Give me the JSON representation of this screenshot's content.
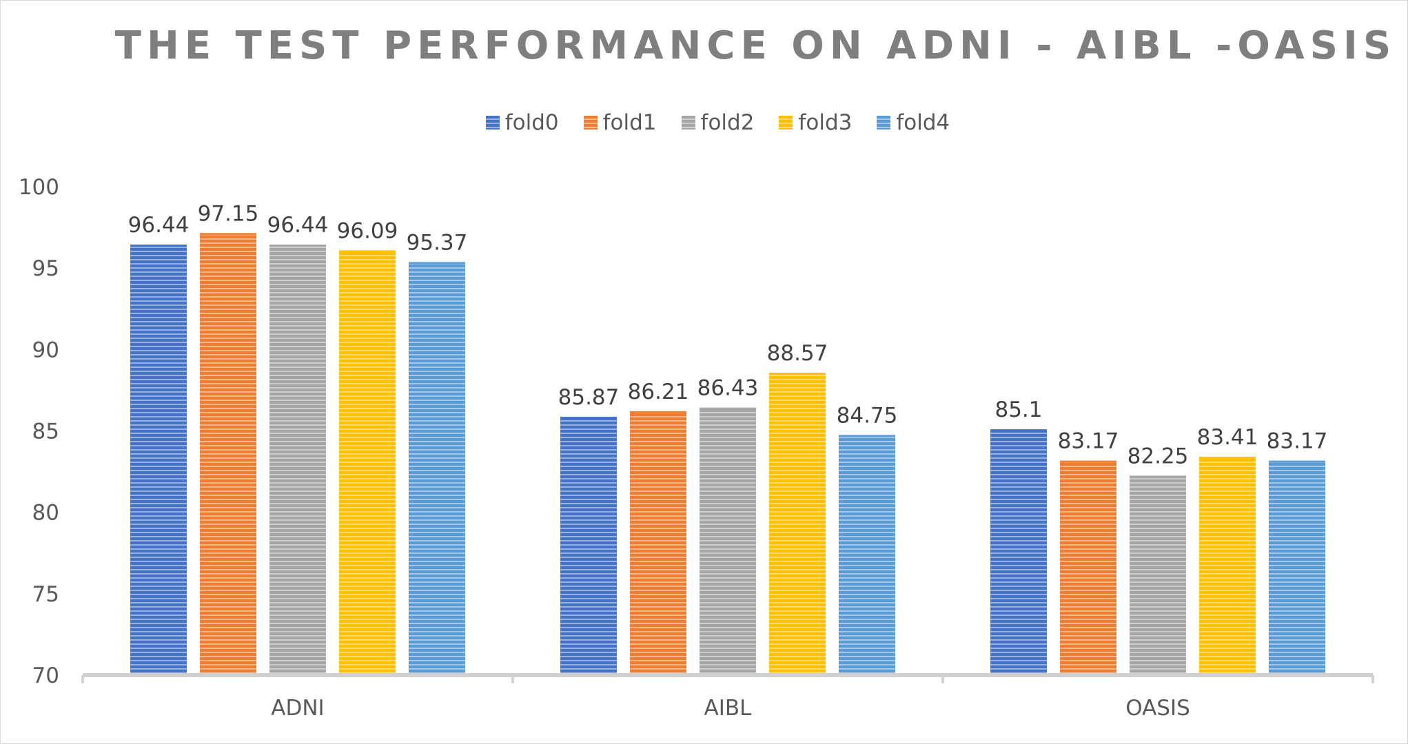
{
  "chart_data": {
    "type": "bar",
    "title": "THE TEST PERFORMANCE ON ADNI - AIBL -OASIS",
    "xlabel": "",
    "ylabel": "",
    "categories": [
      "ADNI",
      "AIBL",
      "OASIS"
    ],
    "ylim": [
      70,
      100
    ],
    "yticks": [
      "100",
      "95",
      "90",
      "85",
      "80",
      "75",
      "70"
    ],
    "grid": false,
    "legend_position": "top",
    "series": [
      {
        "name": "fold0",
        "color": "#4472c4",
        "values": [
          96.44,
          85.87,
          85.1
        ],
        "labels": [
          "96.44",
          "85.87",
          "85.1"
        ]
      },
      {
        "name": "fold1",
        "color": "#ed7d31",
        "values": [
          97.15,
          86.21,
          83.17
        ],
        "labels": [
          "97.15",
          "86.21",
          "83.17"
        ]
      },
      {
        "name": "fold2",
        "color": "#a5a5a5",
        "values": [
          96.44,
          86.43,
          82.25
        ],
        "labels": [
          "96.44",
          "86.43",
          "82.25"
        ]
      },
      {
        "name": "fold3",
        "color": "#ffc000",
        "values": [
          96.09,
          88.57,
          83.41
        ],
        "labels": [
          "96.09",
          "88.57",
          "83.41"
        ]
      },
      {
        "name": "fold4",
        "color": "#5b9bd5",
        "values": [
          95.37,
          84.75,
          83.17
        ],
        "labels": [
          "95.37",
          "84.75",
          "83.17"
        ]
      }
    ]
  }
}
